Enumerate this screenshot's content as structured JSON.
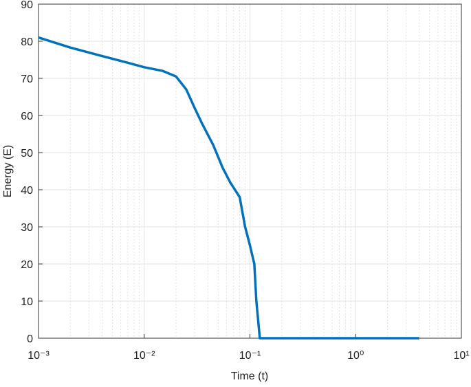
{
  "chart_data": {
    "type": "line",
    "xlabel": "Time (t)",
    "ylabel": "Energy (E)",
    "x_scale": "log",
    "grid": true,
    "minor_grid": true,
    "xlim": [
      0.001,
      10
    ],
    "ylim": [
      0,
      90
    ],
    "xticks": [
      {
        "value": 0.001,
        "label": "10⁻³"
      },
      {
        "value": 0.01,
        "label": "10⁻²"
      },
      {
        "value": 0.1,
        "label": "10⁻¹"
      },
      {
        "value": 1,
        "label": "10⁰"
      },
      {
        "value": 10,
        "label": "10¹"
      }
    ],
    "yticks": [
      0,
      10,
      20,
      30,
      40,
      50,
      60,
      70,
      80,
      90
    ],
    "series": [
      {
        "color": "#0072bd",
        "x": [
          0.001,
          0.002,
          0.004,
          0.007,
          0.01,
          0.015,
          0.02,
          0.025,
          0.03,
          0.035,
          0.045,
          0.055,
          0.065,
          0.08,
          0.09,
          0.1,
          0.11,
          0.115,
          0.124,
          0.13,
          4
        ],
        "values": [
          81,
          78.3,
          76,
          74.2,
          73,
          72,
          70.5,
          67,
          62,
          58,
          52,
          46,
          42,
          38,
          30,
          25,
          20,
          10,
          0,
          0,
          0
        ]
      }
    ]
  }
}
